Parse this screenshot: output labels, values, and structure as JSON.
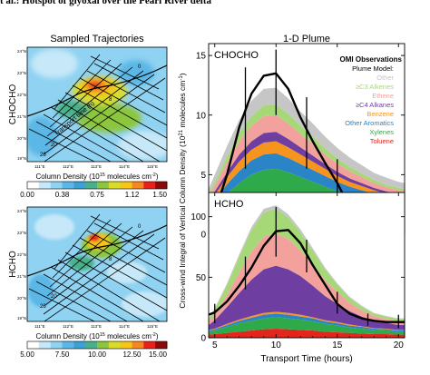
{
  "header": {
    "title": "t al.: Hotspot of glyoxal over the Pearl River delta"
  },
  "map_panels": {
    "heading": "Sampled Trajectories",
    "lon_ticks": [
      "111°E",
      "112°E",
      "113°E",
      "114°E",
      "115°E"
    ],
    "lat_ticks": [
      "24°N",
      "23°N",
      "22°N",
      "21°N",
      "20°N",
      "19°N"
    ],
    "colorbar_label": "Column Density (10",
    "colorbar_exp": "15",
    "colorbar_unit": " molecules cm",
    "colorbar_unit_exp": "-2",
    "colorbar_close": ")",
    "colormap": [
      "#ffffff",
      "#c6e8f8",
      "#8fd2f2",
      "#5ab7e6",
      "#3aa2d8",
      "#48b08a",
      "#8cc63e",
      "#d8dd2a",
      "#f5c518",
      "#f6861f",
      "#e8221a",
      "#8a0a0a"
    ],
    "top": {
      "row_label": "CHOCHO",
      "transport_label": "Transport time (h)",
      "hour_labels": [
        "0",
        "8",
        "20",
        "26"
      ],
      "colorbar_ticks": [
        "0.00",
        "0.38",
        "0.75",
        "1.12",
        "1.50"
      ]
    },
    "bottom": {
      "row_label": "HCHO",
      "hour_labels": [
        "26",
        "20",
        "8",
        "0"
      ],
      "colorbar_ticks": [
        "5.00",
        "7.50",
        "10.00",
        "12.50",
        "15.00"
      ]
    }
  },
  "plume_panels": {
    "heading": "1-D Plume",
    "ylabel": "Cross-wind Integral of Vertical Column Density (10",
    "ylabel_exp": "21",
    "ylabel_unit": " molecules cm",
    "ylabel_unit_exp": "-1",
    "ylabel_close": ")",
    "xlabel": "Transport Time (hours)",
    "legend_title": "OMI Observations",
    "legend_subtitle": "Plume Model:",
    "legend": [
      {
        "name": "Other",
        "color": "#c6c6c6"
      },
      {
        "name": "≥C3 Alkenes",
        "color": "#a6d878"
      },
      {
        "name": "Ethene",
        "color": "#f3a19c"
      },
      {
        "name": "≥C4 Alkanes",
        "color": "#6e3fa0"
      },
      {
        "name": "Benzene",
        "color": "#f7941d"
      },
      {
        "name": "Other Aromatics",
        "color": "#2b84c6"
      },
      {
        "name": "Xylenes",
        "color": "#2eaa4a"
      },
      {
        "name": "Toluene",
        "color": "#e3261c"
      }
    ]
  },
  "chart_data": [
    {
      "type": "area",
      "title": "CHOCHO",
      "xlabel": "Transport Time (hours)",
      "ylabel": "Cross-wind Integral of Vertical Column Density (10^21 molecules cm^-1)",
      "xlim": [
        4.5,
        20.5
      ],
      "ylim": [
        0,
        16
      ],
      "xticks": [
        5,
        10,
        15,
        20
      ],
      "yticks": [
        0,
        5,
        10,
        15
      ],
      "x": [
        4.5,
        5,
        6,
        7,
        8,
        9,
        10,
        11,
        12,
        13,
        14,
        15,
        16,
        17,
        18,
        19,
        20,
        20.5
      ],
      "series": [
        {
          "name": "Toluene",
          "color": "#e3261c",
          "values": [
            1.4,
            1.7,
            2.3,
            2.8,
            3.2,
            3.4,
            3.5,
            3.4,
            3.2,
            3.0,
            2.8,
            2.6,
            2.4,
            2.3,
            2.2,
            2.1,
            2.0,
            1.9
          ]
        },
        {
          "name": "Xylenes",
          "color": "#2eaa4a",
          "values": [
            0.5,
            0.7,
            1.1,
            1.5,
            1.8,
            2.0,
            2.0,
            1.8,
            1.6,
            1.4,
            1.2,
            1.0,
            0.9,
            0.8,
            0.7,
            0.6,
            0.5,
            0.5
          ]
        },
        {
          "name": "Other Aromatics",
          "color": "#2b84c6",
          "values": [
            0.4,
            0.5,
            0.8,
            1.0,
            1.2,
            1.3,
            1.3,
            1.2,
            1.1,
            1.0,
            0.9,
            0.8,
            0.7,
            0.6,
            0.5,
            0.4,
            0.4,
            0.4
          ]
        },
        {
          "name": "Benzene",
          "color": "#f7941d",
          "values": [
            0.3,
            0.4,
            0.6,
            0.8,
            0.9,
            1.0,
            1.0,
            0.9,
            0.8,
            0.7,
            0.6,
            0.5,
            0.4,
            0.35,
            0.3,
            0.3,
            0.3,
            0.3
          ]
        },
        {
          "name": "≥C4 Alkanes",
          "color": "#6e3fa0",
          "values": [
            0.2,
            0.3,
            0.4,
            0.6,
            0.7,
            0.8,
            0.8,
            0.7,
            0.6,
            0.5,
            0.4,
            0.35,
            0.3,
            0.25,
            0.2,
            0.2,
            0.2,
            0.2
          ]
        },
        {
          "name": "Ethene",
          "color": "#f3a19c",
          "values": [
            0.3,
            0.5,
            0.8,
            1.1,
            1.3,
            1.4,
            1.4,
            1.3,
            1.1,
            1.0,
            0.8,
            0.7,
            0.6,
            0.5,
            0.4,
            0.35,
            0.3,
            0.3
          ]
        },
        {
          "name": "≥C3 Alkenes",
          "color": "#a6d878",
          "values": [
            0.2,
            0.3,
            0.5,
            0.7,
            0.8,
            0.9,
            0.9,
            0.8,
            0.7,
            0.6,
            0.5,
            0.4,
            0.35,
            0.3,
            0.25,
            0.2,
            0.2,
            0.2
          ]
        },
        {
          "name": "Other",
          "color": "#c6c6c6",
          "values": [
            0.5,
            0.6,
            0.9,
            1.1,
            1.3,
            1.4,
            1.4,
            1.3,
            1.2,
            1.1,
            1.0,
            0.9,
            0.8,
            0.7,
            0.6,
            0.6,
            0.5,
            0.5
          ]
        }
      ],
      "observation": {
        "name": "OMI Observations",
        "x": [
          4.5,
          5,
          6,
          7,
          8,
          9,
          10,
          11,
          12,
          13,
          14,
          15,
          16,
          17,
          18,
          19,
          20,
          20.5
        ],
        "y": [
          0.7,
          1.8,
          5.0,
          9.0,
          11.8,
          13.3,
          13.5,
          12.2,
          9.8,
          7.8,
          6.0,
          4.3,
          2.3,
          1.0,
          0.9,
          0.9,
          0.8,
          0.6
        ],
        "errorbars": [
          {
            "x": 5,
            "low": 0,
            "high": 3.0
          },
          {
            "x": 7.5,
            "low": 5.5,
            "high": 14.0
          },
          {
            "x": 10,
            "low": 10.0,
            "high": 15.5
          },
          {
            "x": 12.5,
            "low": 5.5,
            "high": 11.5
          },
          {
            "x": 15,
            "low": 2.3,
            "high": 6.3
          },
          {
            "x": 17.5,
            "low": 0,
            "high": 2.3
          },
          {
            "x": 20,
            "low": 0,
            "high": 1.8
          }
        ]
      }
    },
    {
      "type": "area",
      "title": "HCHO",
      "xlabel": "Transport Time (hours)",
      "ylabel": "Cross-wind Integral of Vertical Column Density (10^21 molecules cm^-1)",
      "xlim": [
        4.5,
        20.5
      ],
      "ylim": [
        0,
        120
      ],
      "xticks": [
        5,
        10,
        15,
        20
      ],
      "yticks": [
        0,
        50,
        100
      ],
      "x": [
        4.5,
        5,
        6,
        7,
        8,
        9,
        10,
        11,
        12,
        13,
        14,
        15,
        16,
        17,
        18,
        19,
        20,
        20.5
      ],
      "series": [
        {
          "name": "Toluene",
          "color": "#e3261c",
          "values": [
            2.5,
            3,
            4,
            5,
            6,
            7,
            7.5,
            7,
            6.5,
            6,
            5,
            4.5,
            4,
            3.5,
            3,
            3,
            2.5,
            2.5
          ]
        },
        {
          "name": "Xylenes",
          "color": "#2eaa4a",
          "values": [
            2.5,
            3,
            5,
            7,
            8,
            9,
            9.5,
            9,
            8.5,
            7.5,
            6.5,
            5.5,
            4.5,
            4,
            3.5,
            3,
            2.5,
            2.5
          ]
        },
        {
          "name": "Other Aromatics",
          "color": "#2b84c6",
          "values": [
            1,
            1,
            1.5,
            2,
            2.5,
            3,
            3,
            3,
            2.5,
            2.5,
            2,
            2,
            1.5,
            1.5,
            1,
            1,
            1,
            1
          ]
        },
        {
          "name": "Benzene",
          "color": "#f7941d",
          "values": [
            0.5,
            0.5,
            1,
            1,
            1.5,
            1.5,
            1.5,
            1.5,
            1.5,
            1,
            1,
            1,
            1,
            0.5,
            0.5,
            0.5,
            0.5,
            0.5
          ]
        },
        {
          "name": "≥C4 Alkanes",
          "color": "#6e3fa0",
          "values": [
            4,
            7,
            14,
            22,
            30,
            36,
            38,
            36,
            32,
            26,
            20,
            15,
            11,
            8,
            6,
            5,
            4,
            4
          ]
        },
        {
          "name": "Ethene",
          "color": "#f3a19c",
          "values": [
            3,
            5,
            10,
            17,
            23,
            27,
            27,
            25,
            21,
            17,
            13,
            10,
            7,
            5,
            4,
            3,
            3,
            3
          ]
        },
        {
          "name": "≥C3 Alkenes",
          "color": "#a6d878",
          "values": [
            2,
            4,
            8,
            13,
            18,
            20,
            20,
            18,
            15,
            12,
            9,
            6,
            4,
            3,
            2,
            2,
            2,
            2
          ]
        },
        {
          "name": "Other",
          "color": "#c6c6c6",
          "values": [
            0.5,
            1,
            1.5,
            2,
            2.5,
            3,
            3,
            2.5,
            2.5,
            2,
            1.5,
            1,
            1,
            1,
            0.5,
            0.5,
            0.5,
            0.5
          ]
        }
      ],
      "observation": {
        "name": "OMI Observations",
        "x": [
          4.5,
          5,
          6,
          7,
          8,
          9,
          10,
          11,
          12,
          13,
          14,
          15,
          16,
          17,
          18,
          19,
          20,
          20.5
        ],
        "y": [
          19,
          21,
          30,
          43,
          58,
          76,
          88,
          89,
          78,
          60,
          44,
          28,
          20,
          16,
          14,
          13,
          13,
          13
        ],
        "errorbars": [
          {
            "x": 5,
            "low": 12,
            "high": 28
          },
          {
            "x": 7.5,
            "low": 40,
            "high": 67
          },
          {
            "x": 10,
            "low": 67,
            "high": 108
          },
          {
            "x": 12.5,
            "low": 54,
            "high": 81
          },
          {
            "x": 15,
            "low": 20,
            "high": 38
          },
          {
            "x": 17.5,
            "low": 10,
            "high": 20
          },
          {
            "x": 20,
            "low": 8,
            "high": 19
          }
        ]
      }
    }
  ]
}
